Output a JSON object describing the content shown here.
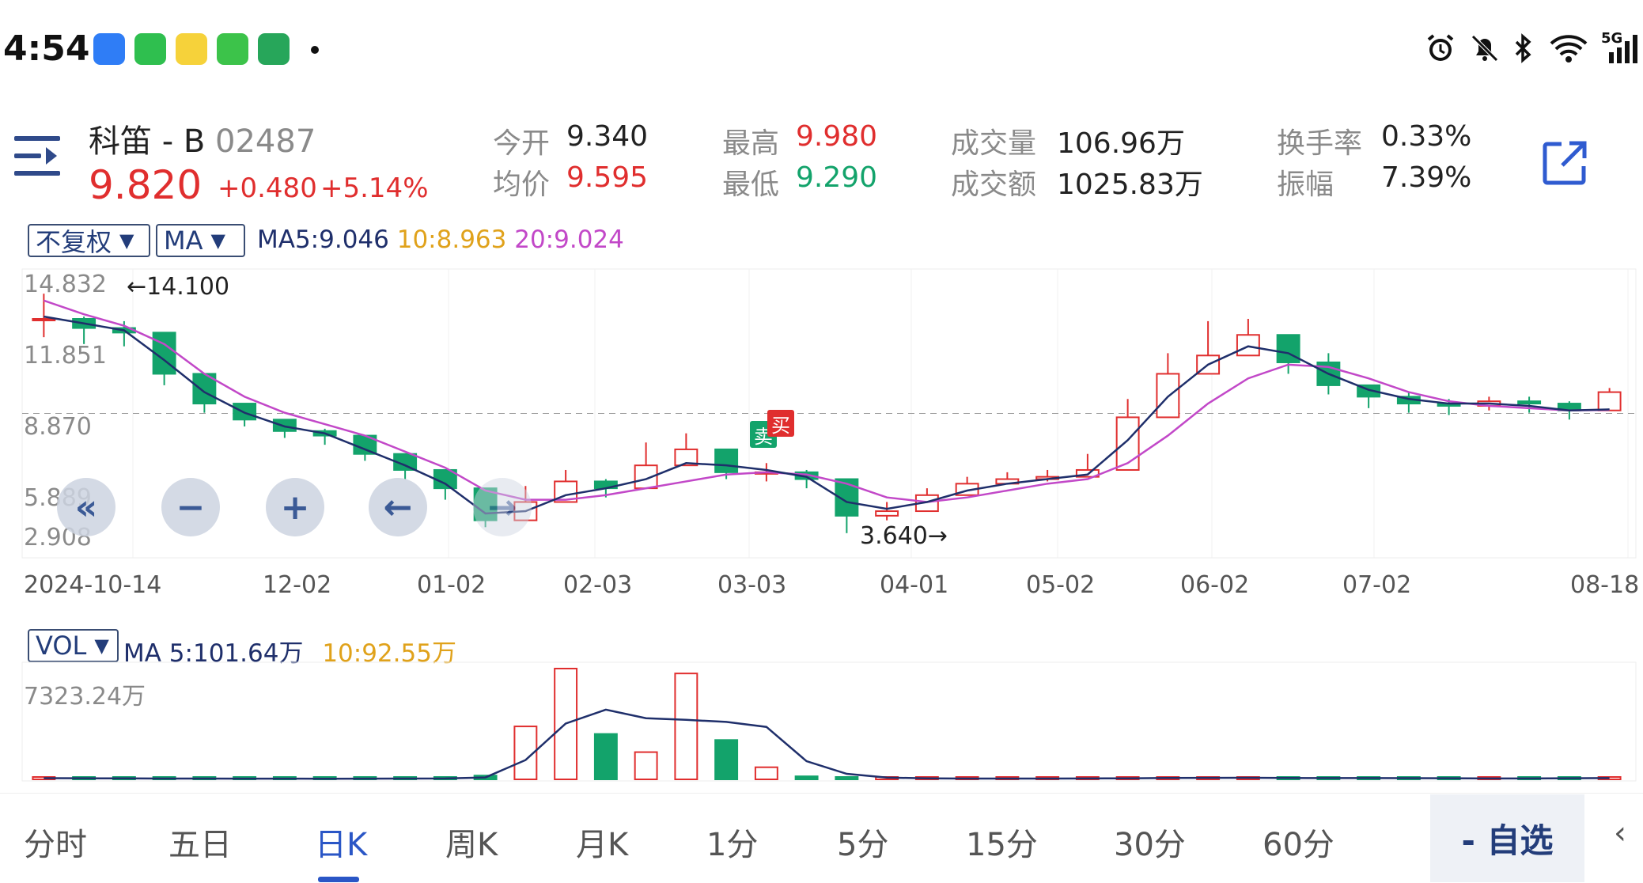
{
  "status_bar": {
    "time": "4:54",
    "apps": [
      {
        "icon": "messenger-icon",
        "color": "#2f7df6"
      },
      {
        "icon": "phone-icon",
        "color": "#2fbf4f"
      },
      {
        "icon": "game-icon",
        "color": "#f6d23a"
      },
      {
        "icon": "chat-icon",
        "color": "#3cc34a"
      },
      {
        "icon": "fruit-icon",
        "color": "#27a65a"
      }
    ],
    "system_icons": [
      "alarm-icon",
      "mute-icon",
      "bluetooth-icon",
      "wifi-icon",
      "signal-icon"
    ],
    "network": "5G"
  },
  "header": {
    "name": "科笛 - B",
    "code": "02487",
    "price": "9.820",
    "change": "+0.480",
    "change_pct": "+5.14%",
    "quotes": {
      "open_label": "今开",
      "open": "9.340",
      "avg_label": "均价",
      "avg": "9.595",
      "high_label": "最高",
      "high": "9.980",
      "low_label": "最低",
      "low": "9.290",
      "volume_label": "成交量",
      "volume": "106.96万",
      "amount_label": "成交额",
      "amount": "1025.83万",
      "turnover_label": "换手率",
      "turnover": "0.33%",
      "amplitude_label": "振幅",
      "amplitude": "7.39%"
    }
  },
  "chart": {
    "adjust_dropdown": "不复权",
    "indicator_dropdown": "MA",
    "ma5": "MA5:9.046",
    "ma10": "10:8.963",
    "ma20": "20:9.024",
    "y_ticks": [
      "14.832",
      "11.851",
      "8.870",
      "5.889",
      "2.908"
    ],
    "max_label": "←14.100",
    "min_label": "3.640→",
    "trade_badges": [
      "卖",
      "买"
    ],
    "x_ticks": [
      "2024-10-14",
      "12-02",
      "01-02",
      "02-03",
      "03-03",
      "04-01",
      "05-02",
      "06-02",
      "07-02",
      "08-18"
    ],
    "vol_dropdown": "VOL",
    "vol_ma5": "MA 5:101.64万",
    "vol_ma10": "10:92.55万",
    "vol_max": "7323.24万",
    "colors": {
      "up": "#e02e2e",
      "down": "#13a36b",
      "ma5": "#1f2f6b",
      "ma10": "#e0a21b",
      "ma20": "#c248c8"
    }
  },
  "chart_data": {
    "type": "candlestick",
    "x_range": [
      "2024-10-14",
      "2025-08-18"
    ],
    "ylim": [
      2.908,
      14.832
    ],
    "dates": [
      "2024-10-14",
      "2024-10-28",
      "2024-11-11",
      "2024-11-25",
      "2024-12-02",
      "2024-12-16",
      "2024-12-30",
      "2025-01-02",
      "2025-01-13",
      "2025-01-20",
      "2025-01-27",
      "2025-02-03",
      "2025-02-10",
      "2025-02-17",
      "2025-02-24",
      "2025-03-03",
      "2025-03-10",
      "2025-03-17",
      "2025-03-24",
      "2025-04-01",
      "2025-04-07",
      "2025-04-14",
      "2025-04-21",
      "2025-04-28",
      "2025-05-02",
      "2025-05-12",
      "2025-05-19",
      "2025-05-26",
      "2025-06-02",
      "2025-06-09",
      "2025-06-16",
      "2025-06-23",
      "2025-06-30",
      "2025-07-02",
      "2025-07-14",
      "2025-07-21",
      "2025-07-28",
      "2025-08-04",
      "2025-08-11",
      "2025-08-18"
    ],
    "close": [
      13.0,
      12.6,
      12.4,
      10.6,
      9.3,
      8.6,
      8.1,
      7.9,
      7.1,
      6.4,
      5.6,
      4.2,
      5.0,
      5.9,
      5.6,
      6.6,
      7.3,
      6.3,
      6.3,
      6.0,
      4.4,
      4.6,
      5.3,
      5.8,
      6.0,
      6.1,
      6.4,
      8.7,
      10.6,
      11.4,
      12.3,
      11.1,
      10.1,
      9.6,
      9.3,
      9.2,
      9.4,
      9.3,
      9.0,
      9.8
    ],
    "high": [
      14.1,
      13.1,
      12.9,
      11.2,
      9.6,
      8.9,
      8.4,
      8.2,
      7.4,
      6.6,
      5.9,
      4.5,
      5.7,
      6.4,
      6.0,
      7.6,
      8.0,
      6.9,
      6.7,
      6.4,
      4.8,
      5.0,
      5.6,
      6.1,
      6.3,
      6.4,
      7.1,
      9.5,
      11.5,
      12.9,
      13.0,
      11.7,
      11.5,
      10.0,
      9.8,
      9.5,
      9.6,
      9.6,
      9.4,
      9.98
    ],
    "low": [
      12.2,
      11.9,
      11.8,
      10.1,
      8.9,
      8.3,
      7.8,
      7.5,
      6.8,
      6.0,
      5.1,
      3.9,
      4.6,
      5.2,
      5.2,
      6.0,
      6.6,
      6.0,
      5.9,
      5.6,
      3.64,
      4.2,
      5.0,
      5.5,
      5.8,
      5.9,
      6.2,
      8.3,
      10.1,
      11.0,
      11.4,
      10.6,
      9.7,
      9.1,
      8.9,
      8.8,
      9.0,
      8.9,
      8.6,
      9.29
    ],
    "ma5": [
      13.1,
      12.8,
      12.5,
      11.2,
      9.8,
      8.9,
      8.3,
      8.0,
      7.3,
      6.6,
      5.8,
      4.5,
      4.6,
      5.3,
      5.6,
      6.0,
      6.7,
      6.6,
      6.4,
      6.1,
      5.0,
      4.7,
      5.0,
      5.5,
      5.8,
      6.0,
      6.2,
      7.7,
      9.6,
      11.0,
      11.8,
      11.5,
      10.6,
      9.9,
      9.5,
      9.3,
      9.3,
      9.2,
      9.0,
      9.046
    ],
    "ma20": [
      13.8,
      13.2,
      12.7,
      11.9,
      10.6,
      9.6,
      8.9,
      8.4,
      7.9,
      7.2,
      6.5,
      5.5,
      5.1,
      5.1,
      5.3,
      5.6,
      5.9,
      6.2,
      6.3,
      6.2,
      5.8,
      5.2,
      5.0,
      5.2,
      5.5,
      5.8,
      6.0,
      6.7,
      7.9,
      9.3,
      10.4,
      11.0,
      10.9,
      10.4,
      9.8,
      9.4,
      9.2,
      9.1,
      9.0,
      9.024
    ],
    "volume_wan": [
      80,
      60,
      55,
      40,
      70,
      35,
      30,
      60,
      40,
      50,
      80,
      250,
      3500,
      7323,
      3000,
      1800,
      7000,
      2600,
      800,
      200,
      90,
      60,
      50,
      45,
      60,
      55,
      70,
      80,
      120,
      90,
      100,
      80,
      70,
      110,
      60,
      50,
      60,
      70,
      80,
      106.96
    ],
    "volume_ylim": [
      0,
      7323.24
    ]
  },
  "tabs": [
    {
      "label": "分时",
      "name": "tab-intraday"
    },
    {
      "label": "五日",
      "name": "tab-five-day"
    },
    {
      "label": "日K",
      "name": "tab-daily-k"
    },
    {
      "label": "周K",
      "name": "tab-weekly-k"
    },
    {
      "label": "月K",
      "name": "tab-monthly-k"
    },
    {
      "label": "1分",
      "name": "tab-1min"
    },
    {
      "label": "5分",
      "name": "tab-5min"
    },
    {
      "label": "15分",
      "name": "tab-15min"
    },
    {
      "label": "30分",
      "name": "tab-30min"
    },
    {
      "label": "60分",
      "name": "tab-60min"
    }
  ],
  "active_tab": "日K",
  "watchlist_button": "- 自选"
}
